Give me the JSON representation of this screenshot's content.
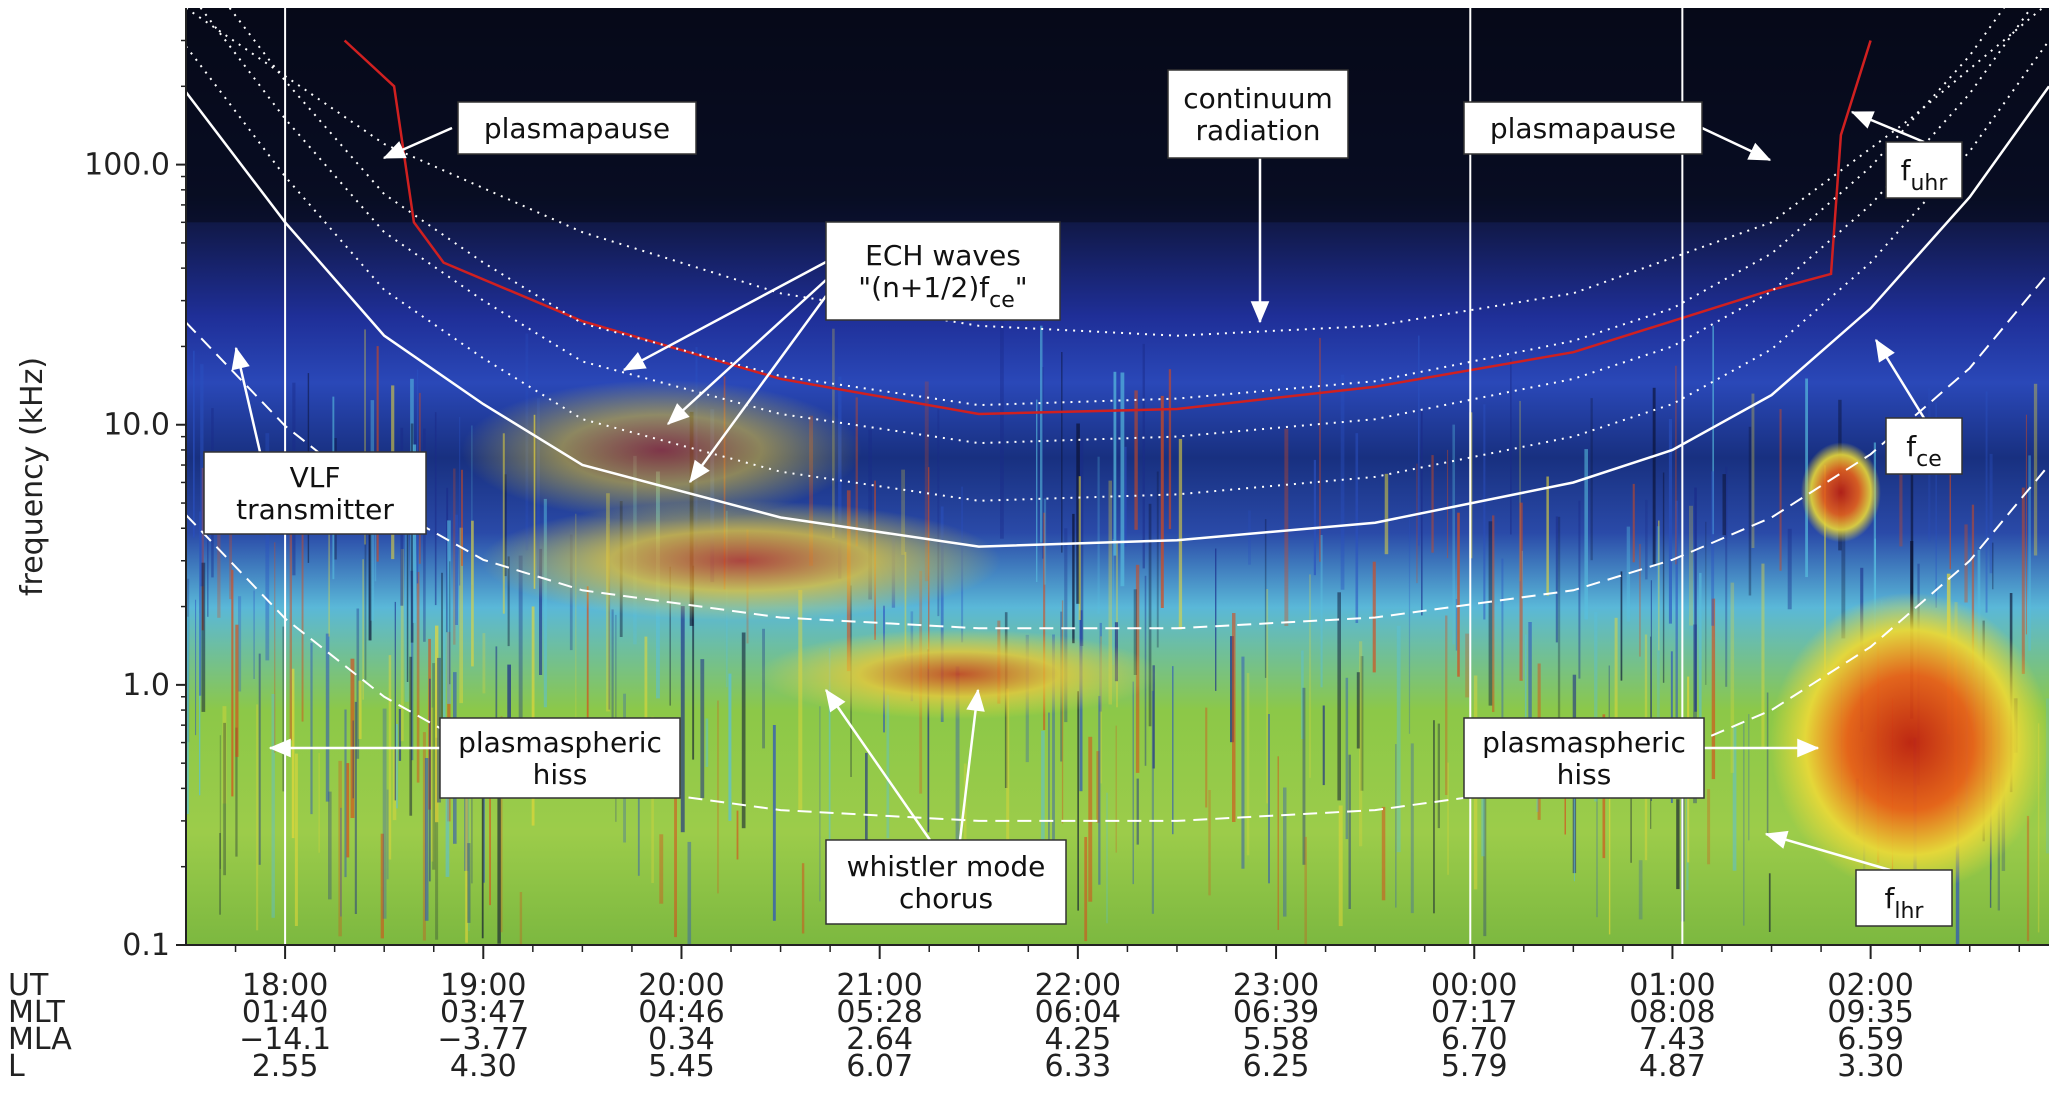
{
  "chart_data": {
    "type": "heatmap",
    "title": "",
    "ylabel": "frequency (kHz)",
    "yscale": "log",
    "ylim": [
      0.1,
      400
    ],
    "yticks": [
      {
        "value": 100,
        "label": "100.0"
      },
      {
        "value": 10,
        "label": "10.0"
      },
      {
        "value": 1,
        "label": "1.0"
      },
      {
        "value": 0.1,
        "label": "0.1"
      }
    ],
    "x_axis": {
      "ut_range_hours": [
        17.5,
        26.9
      ],
      "row_labels": [
        "UT",
        "MLT",
        "MLA",
        "L"
      ],
      "ticks": [
        {
          "ut_hours": 18,
          "UT": "18:00",
          "MLT": "01:40",
          "MLA": "−14.1",
          "L": "2.55"
        },
        {
          "ut_hours": 19,
          "UT": "19:00",
          "MLT": "03:47",
          "MLA": "−3.77",
          "L": "4.30"
        },
        {
          "ut_hours": 20,
          "UT": "20:00",
          "MLT": "04:46",
          "MLA": "0.34",
          "L": "5.45"
        },
        {
          "ut_hours": 21,
          "UT": "21:00",
          "MLT": "05:28",
          "MLA": "2.64",
          "L": "6.07"
        },
        {
          "ut_hours": 22,
          "UT": "22:00",
          "MLT": "06:04",
          "MLA": "4.25",
          "L": "6.33"
        },
        {
          "ut_hours": 23,
          "UT": "23:00",
          "MLT": "06:39",
          "MLA": "5.58",
          "L": "6.25"
        },
        {
          "ut_hours": 24,
          "UT": "00:00",
          "MLT": "07:17",
          "MLA": "6.70",
          "L": "5.79"
        },
        {
          "ut_hours": 25,
          "UT": "01:00",
          "MLT": "08:08",
          "MLA": "7.43",
          "L": "4.87"
        },
        {
          "ut_hours": 26,
          "UT": "02:00",
          "MLT": "09:35",
          "MLA": "6.59",
          "L": "3.30"
        }
      ]
    },
    "series": [
      {
        "name": "f_uhr",
        "style": "dotted-white",
        "points": [
          [
            17.5,
            400
          ],
          [
            18.5,
            120
          ],
          [
            19.5,
            55
          ],
          [
            20.5,
            32
          ],
          [
            21.5,
            24
          ],
          [
            22.5,
            22
          ],
          [
            23.5,
            24
          ],
          [
            24.5,
            32
          ],
          [
            25.5,
            60
          ],
          [
            26.2,
            150
          ],
          [
            26.9,
            420
          ]
        ]
      },
      {
        "name": "f_ce",
        "style": "solid-white",
        "points": [
          [
            17.5,
            190
          ],
          [
            18,
            60
          ],
          [
            18.5,
            22
          ],
          [
            19,
            12
          ],
          [
            19.5,
            7
          ],
          [
            20.5,
            4.4
          ],
          [
            21.5,
            3.4
          ],
          [
            22.5,
            3.6
          ],
          [
            23.5,
            4.2
          ],
          [
            24.5,
            6
          ],
          [
            25,
            8
          ],
          [
            25.5,
            13
          ],
          [
            26,
            28
          ],
          [
            26.5,
            75
          ],
          [
            26.9,
            200
          ]
        ]
      },
      {
        "name": "f_lhr",
        "style": "dashed-white",
        "points": [
          [
            17.5,
            4.5
          ],
          [
            18,
            1.8
          ],
          [
            18.5,
            0.9
          ],
          [
            19,
            0.55
          ],
          [
            19.5,
            0.42
          ],
          [
            20.5,
            0.33
          ],
          [
            21.5,
            0.3
          ],
          [
            22.5,
            0.3
          ],
          [
            23.5,
            0.33
          ],
          [
            24.5,
            0.42
          ],
          [
            25,
            0.55
          ],
          [
            25.5,
            0.8
          ],
          [
            26,
            1.4
          ],
          [
            26.5,
            3
          ],
          [
            26.9,
            7
          ]
        ]
      },
      {
        "name": "plasma-density-trace",
        "style": "solid-red",
        "points": [
          [
            18.3,
            300
          ],
          [
            18.55,
            200
          ],
          [
            18.65,
            60
          ],
          [
            18.8,
            42
          ],
          [
            19.5,
            25
          ],
          [
            20.5,
            15
          ],
          [
            21.5,
            11
          ],
          [
            22.5,
            11.5
          ],
          [
            23.5,
            14
          ],
          [
            24.5,
            19
          ],
          [
            25.5,
            33
          ],
          [
            25.8,
            38
          ],
          [
            25.85,
            130
          ],
          [
            26.0,
            300
          ]
        ]
      }
    ],
    "annotations": [
      {
        "id": "plasmapause-left",
        "lines": [
          "plasmapause"
        ]
      },
      {
        "id": "continuum",
        "lines": [
          "continuum",
          "radiation"
        ]
      },
      {
        "id": "plasmapause-right",
        "lines": [
          "plasmapause"
        ]
      },
      {
        "id": "fuhr",
        "lines": [
          "f"
        ],
        "subscript": "uhr"
      },
      {
        "id": "ech",
        "lines": [
          "ECH waves",
          "\"(n+1/2)f"
        ],
        "subscript": "ce",
        "suffix": "\""
      },
      {
        "id": "fce",
        "lines": [
          "f"
        ],
        "subscript": "ce"
      },
      {
        "id": "vlf",
        "lines": [
          "VLF",
          "transmitter"
        ]
      },
      {
        "id": "hiss-left",
        "lines": [
          "plasmaspheric",
          "hiss"
        ]
      },
      {
        "id": "hiss-right",
        "lines": [
          "plasmaspheric",
          "hiss"
        ]
      },
      {
        "id": "chorus",
        "lines": [
          "whistler mode",
          "chorus"
        ]
      },
      {
        "id": "flhr",
        "lines": [
          "f"
        ],
        "subscript": "lhr"
      }
    ],
    "colors": {
      "background_high": "#050818",
      "band_blue": "#2838a8",
      "band_cyan": "#58c8e8",
      "band_green": "#7cc850",
      "band_yellow": "#e8e040",
      "band_red": "#c82818"
    },
    "grid": false,
    "legend": "none"
  }
}
